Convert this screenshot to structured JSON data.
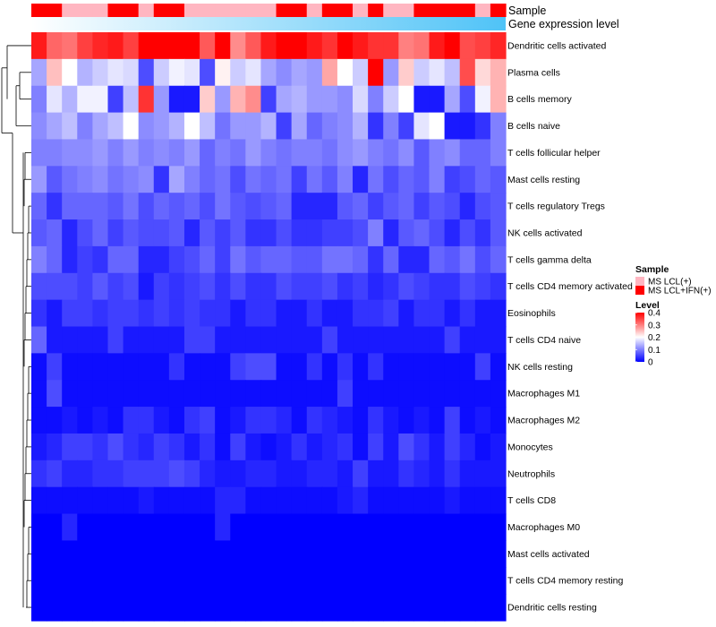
{
  "chart_data": {
    "type": "heatmap",
    "title": "",
    "rows": [
      "Dendritic cells activated",
      "Plasma cells",
      "B cells memory",
      "B cells naive",
      "T cells follicular helper",
      "Mast cells resting",
      "T cells regulatory  Tregs",
      "NK cells activated",
      "T cells gamma delta",
      "T cells CD4 memory activated",
      "Eosinophils",
      "T cells CD4 naive",
      "NK cells resting",
      "Macrophages M1",
      "Macrophages M2",
      "Monocytes",
      "Neutrophils",
      "T cells CD8",
      "Macrophages M0",
      "Mast cells activated",
      "T cells CD4 memory resting",
      "Dendritic cells resting"
    ],
    "n_columns": 31,
    "annotation_tracks": {
      "sample_label": "Sample",
      "expression_label": "Gene expression level",
      "sample": [
        1,
        1,
        0,
        0,
        0,
        1,
        1,
        0,
        1,
        1,
        0,
        0,
        0,
        0,
        0,
        0,
        1,
        1,
        0,
        1,
        1,
        0,
        1,
        0,
        0,
        1,
        1,
        1,
        1,
        0,
        1
      ],
      "expression_gradient": {
        "from": "#ffffff",
        "to": "#4fc3f7"
      }
    },
    "legend": {
      "sample": {
        "title": "Sample",
        "entries": [
          {
            "label": "MS LCL(+)",
            "color": "#ffb6c1"
          },
          {
            "label": "MS LCL+IFN(+)",
            "color": "#ff0000"
          }
        ]
      },
      "level": {
        "title": "Level",
        "ticks": [
          "0.4",
          "0.3",
          "0.2",
          "0.1",
          "0"
        ],
        "range": [
          0,
          0.4
        ],
        "colors": [
          "#0000ff",
          "#ffffff",
          "#ff0000"
        ]
      }
    },
    "values": [
      [
        0.38,
        0.32,
        0.31,
        0.35,
        0.37,
        0.38,
        0.35,
        0.4,
        0.4,
        0.4,
        0.4,
        0.33,
        0.4,
        0.29,
        0.33,
        0.38,
        0.4,
        0.4,
        0.38,
        0.36,
        0.4,
        0.38,
        0.36,
        0.36,
        0.3,
        0.31,
        0.38,
        0.4,
        0.34,
        0.35,
        0.37
      ],
      [
        0.13,
        0.25,
        0.2,
        0.14,
        0.16,
        0.18,
        0.17,
        0.06,
        0.16,
        0.19,
        0.18,
        0.06,
        0.21,
        0.16,
        0.18,
        0.13,
        0.11,
        0.13,
        0.12,
        0.27,
        0.2,
        0.16,
        0.4,
        0.12,
        0.24,
        0.16,
        0.18,
        0.15,
        0.34,
        0.23,
        0.26
      ],
      [
        0.1,
        0.18,
        0.14,
        0.19,
        0.19,
        0.05,
        0.15,
        0.36,
        0.12,
        0.02,
        0.02,
        0.24,
        0.12,
        0.26,
        0.29,
        0.05,
        0.13,
        0.14,
        0.12,
        0.12,
        0.11,
        0.17,
        0.1,
        0.16,
        0.2,
        0.02,
        0.02,
        0.13,
        0.06,
        0.19,
        0.26
      ],
      [
        0.11,
        0.13,
        0.15,
        0.1,
        0.13,
        0.15,
        0.2,
        0.11,
        0.12,
        0.14,
        0.2,
        0.15,
        0.09,
        0.12,
        0.12,
        0.14,
        0.05,
        0.13,
        0.08,
        0.1,
        0.11,
        0.14,
        0.04,
        0.1,
        0.05,
        0.18,
        0.2,
        0.02,
        0.02,
        0.04,
        0.1
      ],
      [
        0.1,
        0.1,
        0.11,
        0.11,
        0.12,
        0.1,
        0.12,
        0.1,
        0.11,
        0.1,
        0.12,
        0.08,
        0.1,
        0.09,
        0.12,
        0.1,
        0.09,
        0.1,
        0.1,
        0.09,
        0.11,
        0.12,
        0.1,
        0.09,
        0.11,
        0.07,
        0.1,
        0.11,
        0.08,
        0.08,
        0.1
      ],
      [
        0.12,
        0.07,
        0.09,
        0.1,
        0.11,
        0.09,
        0.1,
        0.11,
        0.04,
        0.13,
        0.1,
        0.08,
        0.09,
        0.06,
        0.09,
        0.08,
        0.09,
        0.05,
        0.09,
        0.07,
        0.1,
        0.03,
        0.09,
        0.06,
        0.08,
        0.07,
        0.1,
        0.05,
        0.06,
        0.08,
        0.07
      ],
      [
        0.08,
        0.04,
        0.08,
        0.08,
        0.08,
        0.07,
        0.09,
        0.06,
        0.08,
        0.07,
        0.08,
        0.06,
        0.09,
        0.07,
        0.06,
        0.07,
        0.08,
        0.03,
        0.03,
        0.03,
        0.07,
        0.08,
        0.05,
        0.07,
        0.08,
        0.05,
        0.07,
        0.06,
        0.03,
        0.06,
        0.07
      ],
      [
        0.07,
        0.08,
        0.03,
        0.06,
        0.08,
        0.05,
        0.07,
        0.06,
        0.06,
        0.07,
        0.03,
        0.07,
        0.05,
        0.07,
        0.04,
        0.04,
        0.06,
        0.04,
        0.04,
        0.05,
        0.05,
        0.06,
        0.1,
        0.03,
        0.07,
        0.08,
        0.06,
        0.03,
        0.06,
        0.04,
        0.07
      ],
      [
        0.1,
        0.08,
        0.03,
        0.05,
        0.04,
        0.08,
        0.08,
        0.03,
        0.03,
        0.05,
        0.06,
        0.08,
        0.05,
        0.09,
        0.07,
        0.08,
        0.08,
        0.07,
        0.07,
        0.09,
        0.09,
        0.08,
        0.04,
        0.08,
        0.03,
        0.03,
        0.08,
        0.07,
        0.09,
        0.06,
        0.08
      ],
      [
        0.06,
        0.06,
        0.06,
        0.05,
        0.07,
        0.05,
        0.06,
        0.02,
        0.05,
        0.04,
        0.05,
        0.06,
        0.04,
        0.06,
        0.04,
        0.04,
        0.06,
        0.05,
        0.05,
        0.06,
        0.04,
        0.05,
        0.03,
        0.04,
        0.06,
        0.05,
        0.04,
        0.04,
        0.06,
        0.05,
        0.04
      ],
      [
        0.04,
        0.02,
        0.05,
        0.05,
        0.04,
        0.05,
        0.05,
        0.04,
        0.05,
        0.04,
        0.05,
        0.04,
        0.04,
        0.02,
        0.04,
        0.04,
        0.02,
        0.02,
        0.04,
        0.02,
        0.02,
        0.04,
        0.04,
        0.05,
        0.02,
        0.04,
        0.04,
        0.02,
        0.04,
        0.02,
        0.02
      ],
      [
        0.08,
        0.02,
        0.02,
        0.02,
        0.02,
        0.05,
        0.02,
        0.02,
        0.02,
        0.02,
        0.05,
        0.05,
        0.02,
        0.02,
        0.02,
        0.02,
        0.02,
        0.02,
        0.02,
        0.05,
        0.02,
        0.02,
        0.02,
        0.02,
        0.02,
        0.02,
        0.02,
        0.05,
        0.02,
        0.02,
        0.02
      ],
      [
        0.01,
        0.05,
        0.01,
        0.01,
        0.01,
        0.01,
        0.01,
        0.01,
        0.01,
        0.04,
        0.01,
        0.01,
        0.01,
        0.05,
        0.06,
        0.06,
        0.01,
        0.01,
        0.04,
        0.01,
        0.04,
        0.01,
        0.04,
        0.01,
        0.01,
        0.01,
        0.01,
        0.01,
        0.01,
        0.05,
        0.01
      ],
      [
        0.01,
        0.06,
        0.01,
        0.01,
        0.01,
        0.01,
        0.01,
        0.01,
        0.01,
        0.01,
        0.01,
        0.01,
        0.01,
        0.01,
        0.01,
        0.01,
        0.01,
        0.01,
        0.01,
        0.01,
        0.05,
        0.01,
        0.01,
        0.01,
        0.01,
        0.01,
        0.01,
        0.01,
        0.01,
        0.01,
        0.01
      ],
      [
        0.01,
        0.01,
        0.02,
        0.01,
        0.02,
        0.01,
        0.04,
        0.04,
        0.02,
        0.01,
        0.04,
        0.05,
        0.01,
        0.02,
        0.04,
        0.04,
        0.03,
        0.01,
        0.04,
        0.03,
        0.02,
        0.01,
        0.04,
        0.02,
        0.01,
        0.02,
        0.01,
        0.05,
        0.01,
        0.02,
        0.01
      ],
      [
        0.02,
        0.03,
        0.05,
        0.05,
        0.04,
        0.06,
        0.04,
        0.03,
        0.05,
        0.04,
        0.02,
        0.04,
        0.01,
        0.05,
        0.02,
        0.01,
        0.02,
        0.04,
        0.02,
        0.03,
        0.04,
        0.01,
        0.05,
        0.02,
        0.06,
        0.04,
        0.02,
        0.05,
        0.03,
        0.01,
        0.02
      ],
      [
        0.04,
        0.05,
        0.03,
        0.03,
        0.04,
        0.04,
        0.05,
        0.05,
        0.05,
        0.06,
        0.05,
        0.03,
        0.02,
        0.02,
        0.03,
        0.03,
        0.02,
        0.02,
        0.03,
        0.03,
        0.02,
        0.05,
        0.02,
        0.02,
        0.04,
        0.03,
        0.02,
        0.04,
        0.02,
        0.02,
        0.02
      ],
      [
        0.01,
        0.01,
        0.01,
        0.01,
        0.01,
        0.01,
        0.01,
        0.02,
        0.01,
        0.01,
        0.01,
        0.01,
        0.03,
        0.03,
        0.01,
        0.01,
        0.01,
        0.01,
        0.01,
        0.01,
        0.02,
        0.03,
        0.01,
        0.01,
        0.01,
        0.01,
        0.01,
        0.02,
        0.01,
        0.01,
        0.01
      ],
      [
        0.0,
        0.0,
        0.03,
        0.0,
        0.0,
        0.0,
        0.0,
        0.0,
        0.0,
        0.0,
        0.0,
        0.0,
        0.03,
        0.0,
        0.0,
        0.0,
        0.0,
        0.0,
        0.0,
        0.0,
        0.0,
        0.0,
        0.0,
        0.0,
        0.0,
        0.0,
        0.0,
        0.0,
        0.0,
        0.0,
        0.0
      ],
      [
        0.0,
        0.0,
        0.0,
        0.0,
        0.0,
        0.0,
        0.0,
        0.0,
        0.0,
        0.0,
        0.0,
        0.0,
        0.0,
        0.0,
        0.0,
        0.0,
        0.0,
        0.0,
        0.0,
        0.0,
        0.0,
        0.0,
        0.0,
        0.0,
        0.0,
        0.0,
        0.0,
        0.0,
        0.0,
        0.0,
        0.0
      ],
      [
        0.0,
        0.0,
        0.0,
        0.0,
        0.0,
        0.0,
        0.0,
        0.0,
        0.0,
        0.0,
        0.0,
        0.0,
        0.0,
        0.0,
        0.0,
        0.0,
        0.0,
        0.0,
        0.0,
        0.0,
        0.0,
        0.0,
        0.0,
        0.0,
        0.0,
        0.0,
        0.0,
        0.0,
        0.0,
        0.0,
        0.0
      ],
      [
        0.0,
        0.0,
        0.0,
        0.0,
        0.0,
        0.0,
        0.0,
        0.0,
        0.0,
        0.0,
        0.0,
        0.0,
        0.0,
        0.0,
        0.0,
        0.0,
        0.0,
        0.0,
        0.0,
        0.0,
        0.0,
        0.0,
        0.0,
        0.0,
        0.0,
        0.0,
        0.0,
        0.0,
        0.0,
        0.0,
        0.0
      ]
    ]
  }
}
